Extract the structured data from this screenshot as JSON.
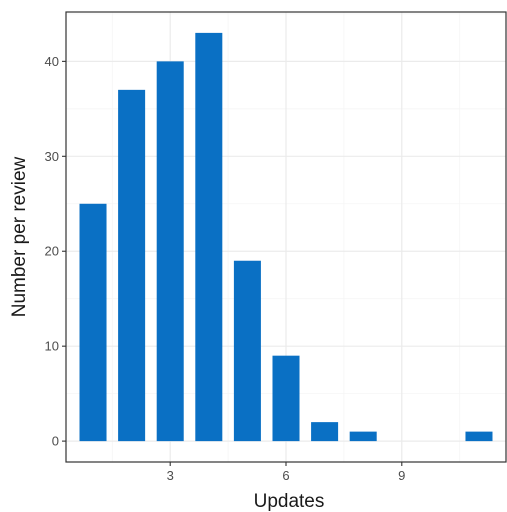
{
  "chart_data": {
    "type": "bar",
    "title": "",
    "xlabel": "Updates",
    "ylabel": "Number per review",
    "x": [
      1,
      2,
      3,
      4,
      5,
      6,
      7,
      8,
      9,
      10,
      11
    ],
    "values": [
      25,
      37,
      40,
      43,
      19,
      9,
      2,
      1,
      0,
      0,
      1
    ],
    "xlim": [
      0.3,
      11.7
    ],
    "ylim": [
      -2.2,
      45.2
    ],
    "xticks": [
      3,
      6,
      9
    ],
    "yticks": [
      0,
      10,
      20,
      30,
      40
    ],
    "xtick_labels": [
      "3",
      "6",
      "9"
    ],
    "ytick_labels": [
      "0",
      "10",
      "20",
      "30",
      "40"
    ],
    "grid": true,
    "legend": "none",
    "colors": {
      "bar": "#0a70c4",
      "panel_background": "#ffffff",
      "grid_major": "#ebebeb",
      "grid_minor": "#f5f5f5",
      "panel_border": "#333333"
    }
  }
}
